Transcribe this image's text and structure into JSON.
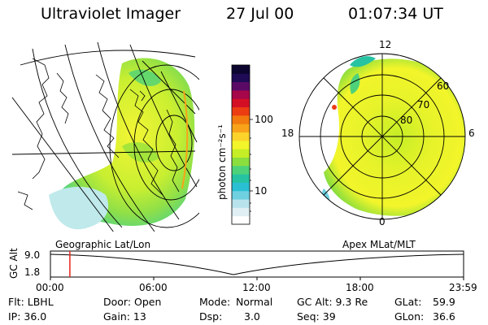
{
  "header": {
    "instrument": "Ultraviolet Imager",
    "date": "27 Jul 00",
    "time": "01:07:34 UT"
  },
  "colorbar": {
    "unit_label": "photon cm⁻²s⁻¹",
    "ticks": [
      "100",
      "10"
    ],
    "colors": [
      "#ffffff",
      "#dfeff3",
      "#b9e3ec",
      "#6fd0e0",
      "#2bbfd3",
      "#26c3a3",
      "#4dd27a",
      "#8ade3e",
      "#c6ee26",
      "#f2f52a",
      "#fbd32a",
      "#f8a319",
      "#f27a0f",
      "#ec3d12",
      "#d40f25",
      "#a6074a",
      "#5a0a66",
      "#1e0a55",
      "#0b0530"
    ]
  },
  "left_map": {
    "label": "Geographic Lat/Lon"
  },
  "right_map": {
    "label": "Apex MLat/MLT",
    "lat_labels": [
      "60",
      "70",
      "80"
    ],
    "mlt_labels": {
      "top": "12",
      "bottom": "0",
      "left": "18",
      "right": "6"
    }
  },
  "timeline": {
    "axis_label": "GC Alt",
    "y_ticks": [
      "9.0",
      "1.8"
    ],
    "x_ticks": [
      "00:00",
      "06:00",
      "12:00",
      "18:00",
      "23:59"
    ],
    "marker_time_hours": 1.126
  },
  "footer": {
    "flt": "Flt: LBHL",
    "ip": "IP: 36.0",
    "door": "Door: Open",
    "gain": "Gain: 13",
    "mode_label": "Mode:",
    "mode_value": "Normal",
    "dsp_label": "Dsp:",
    "dsp_value": "3.0",
    "gcalt": "GC Alt: 9.3 Re",
    "seq": "Seq: 39",
    "glat_label": "GLat:",
    "glat_value": "59.9",
    "glon_label": "GLon:",
    "glon_value": "36.6"
  }
}
